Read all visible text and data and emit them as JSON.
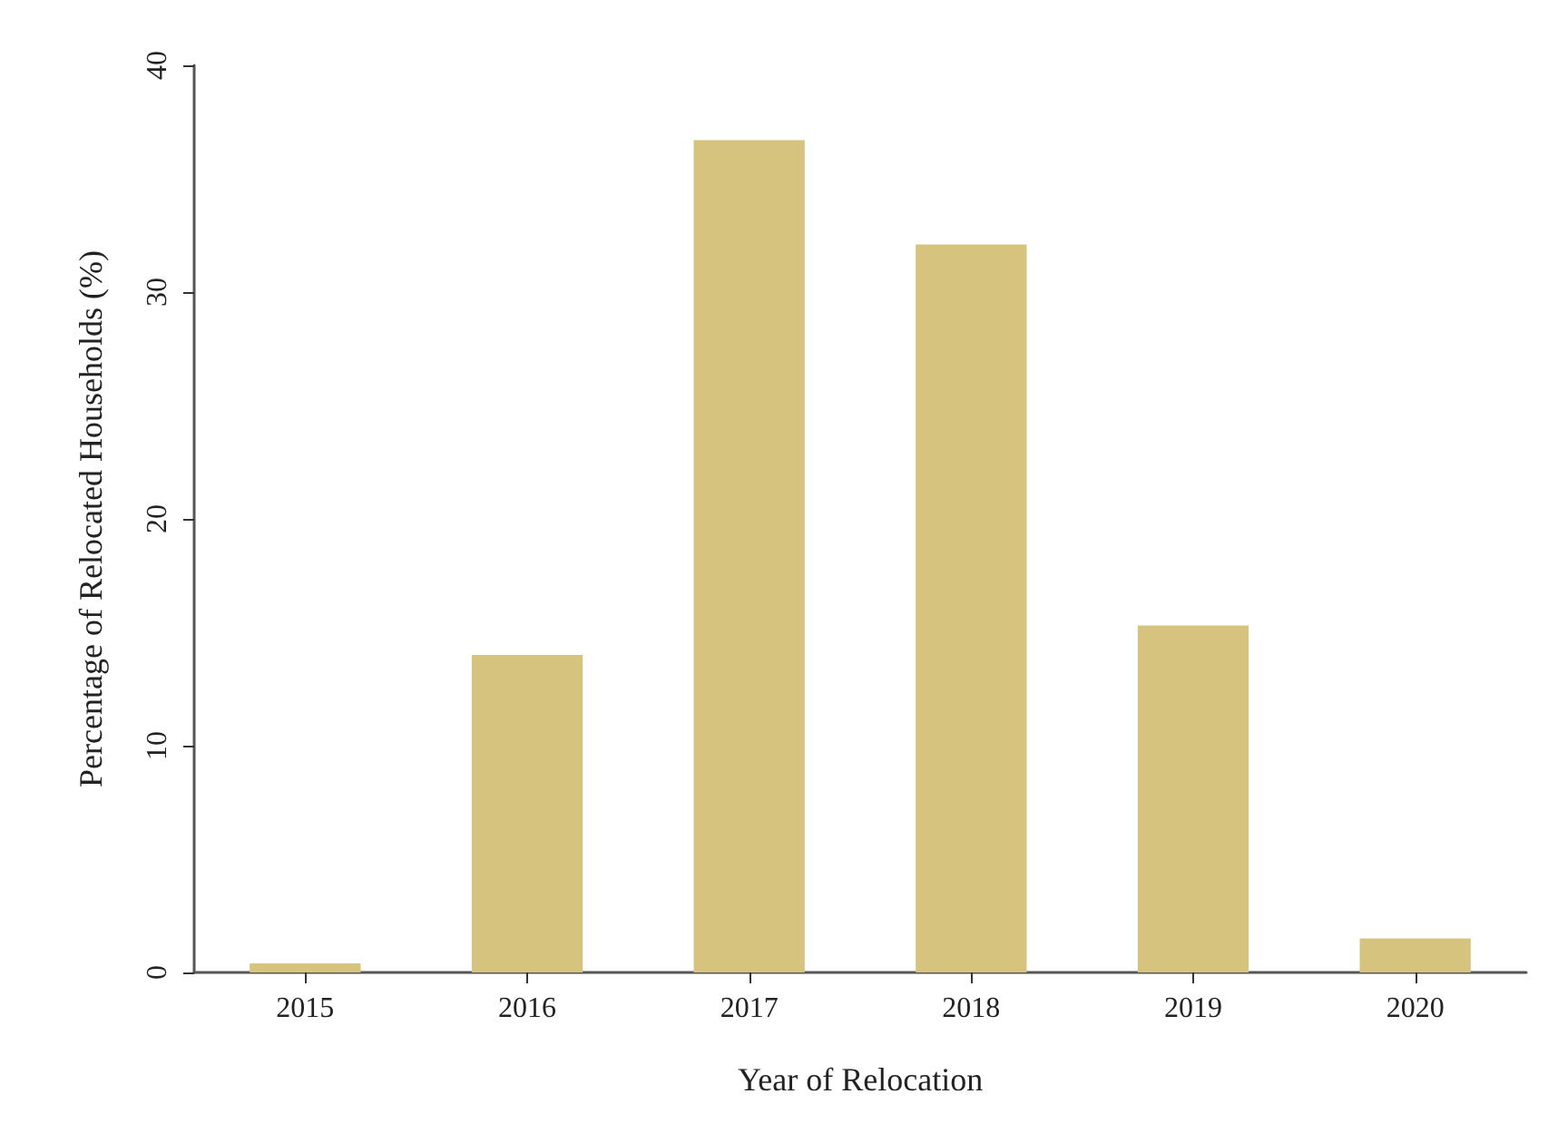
{
  "chart_data": {
    "type": "bar",
    "xlabel": "Year of Relocation",
    "ylabel": "Percentage of Relocated Households (%)",
    "categories": [
      "2015",
      "2016",
      "2017",
      "2018",
      "2019",
      "2020"
    ],
    "values": [
      0.4,
      14.0,
      36.7,
      32.1,
      15.3,
      1.5
    ],
    "color": "#d5c37e",
    "ylim": [
      0,
      40
    ],
    "yticks": [
      0,
      10,
      20,
      30,
      40
    ]
  }
}
